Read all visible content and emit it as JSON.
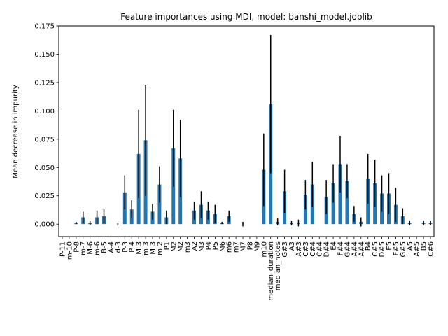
{
  "chart_data": {
    "type": "bar",
    "title": "Feature importances using MDI, model: banshi_model.joblib",
    "xlabel": "",
    "ylabel": "Mean decrease in impurity",
    "ylim": [
      -0.011,
      0.175
    ],
    "yticks": [
      0.0,
      0.025,
      0.05,
      0.075,
      0.1,
      0.125,
      0.15,
      0.175
    ],
    "ytick_labels": [
      "0.000",
      "0.025",
      "0.050",
      "0.075",
      "0.100",
      "0.125",
      "0.150",
      "0.175"
    ],
    "grid": false,
    "bar_color": "#1f77b4",
    "error_color": "#000000",
    "categories": [
      "P-11",
      "m-10",
      "P-8",
      "m-7",
      "M-6",
      "m-6",
      "B-5",
      "A-4",
      "d-3",
      "P-3",
      "P-4",
      "M-3",
      "m-3",
      "M-3",
      "m-2",
      "P1",
      "M2",
      "M2",
      "m3",
      "A2",
      "M3",
      "P4",
      "P5",
      "M6",
      "m6",
      "m7",
      "M7",
      "P8",
      "M9",
      "m10",
      "median_duration",
      "median_notes",
      "G#3",
      "A3",
      "A#3",
      "C#3",
      "C#4",
      "C#4",
      "D#4",
      "E4",
      "F#4",
      "G#4",
      "A#4",
      "A#4",
      "B4",
      "C#5",
      "D#5",
      "E5",
      "F#5",
      "G#5",
      "A5",
      "A#5",
      "B5",
      "C#6"
    ],
    "values": [
      0.0,
      0.0,
      0.001,
      0.006,
      0.001,
      0.006,
      0.007,
      0.0,
      0.0,
      0.028,
      0.013,
      0.062,
      0.074,
      0.011,
      0.035,
      0.006,
      0.067,
      0.058,
      0.0,
      0.012,
      0.017,
      0.012,
      0.009,
      0.001,
      0.007,
      0.0,
      0.0,
      0.0,
      0.0,
      0.048,
      0.106,
      0.002,
      0.029,
      0.001,
      0.001,
      0.026,
      0.035,
      0.0,
      0.024,
      0.036,
      0.053,
      0.038,
      0.009,
      0.002,
      0.04,
      0.036,
      0.027,
      0.027,
      0.017,
      0.007,
      0.001,
      0.0,
      0.001,
      0.001
    ],
    "errors": [
      0.0,
      0.0,
      0.001,
      0.005,
      0.002,
      0.006,
      0.006,
      0.0,
      0.001,
      0.015,
      0.008,
      0.039,
      0.049,
      0.007,
      0.016,
      0.006,
      0.034,
      0.034,
      0.0,
      0.008,
      0.012,
      0.008,
      0.008,
      0.001,
      0.005,
      0.0,
      0.002,
      0.0,
      0.0,
      0.032,
      0.061,
      0.003,
      0.019,
      0.002,
      0.003,
      0.013,
      0.02,
      0.0,
      0.015,
      0.017,
      0.025,
      0.015,
      0.007,
      0.004,
      0.022,
      0.021,
      0.016,
      0.018,
      0.015,
      0.007,
      0.002,
      0.0,
      0.002,
      0.002
    ]
  }
}
